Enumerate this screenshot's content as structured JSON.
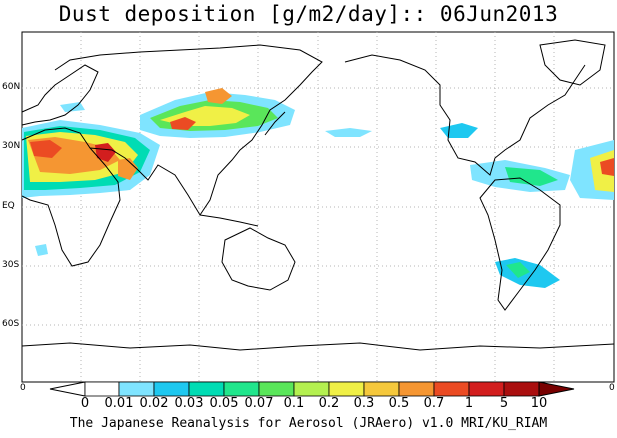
{
  "title": "Dust deposition [g/m2/day]:: 06Jun2013",
  "credit": "The Japanese Reanalysis for Aerosol (JRAero) v1.0 MRI/KU_RIAM",
  "lat_labels": [
    "60N",
    "30N",
    "EQ",
    "30S",
    "60S"
  ],
  "edge_labels": {
    "left": "0",
    "right": "0"
  },
  "colorbar": {
    "labels": [
      "0",
      "0.01",
      "0.02",
      "0.03",
      "0.05",
      "0.07",
      "0.1",
      "0.2",
      "0.3",
      "0.5",
      "0.7",
      "1",
      "5",
      "10"
    ],
    "colors": [
      "#ffffff",
      "#7fe4ff",
      "#1ec8f0",
      "#00dcb4",
      "#20e68c",
      "#5ae65a",
      "#b4f050",
      "#f0f046",
      "#f5c83c",
      "#f59632",
      "#eb4b23",
      "#d21e1e",
      "#aa0f0f",
      "#780000"
    ]
  },
  "colors": {
    "coast": "#000000",
    "grid": "#b4b4b4"
  }
}
